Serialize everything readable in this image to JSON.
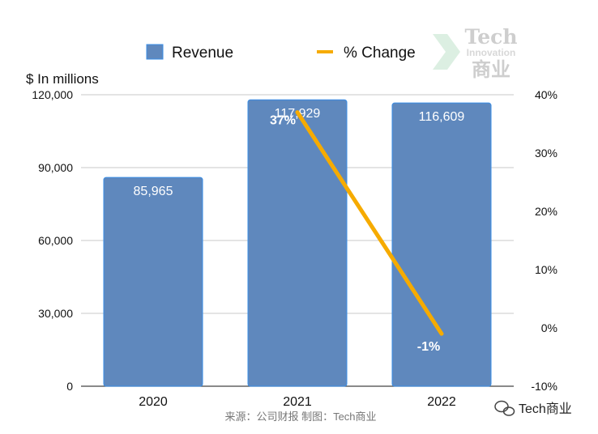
{
  "chart_data": {
    "type": "bar+line",
    "categories": [
      "2020",
      "2021",
      "2022"
    ],
    "series": [
      {
        "name": "Revenue",
        "type": "bar",
        "axis": "left",
        "values": [
          85965,
          117929,
          116609
        ],
        "labels": [
          "85,965",
          "117,929",
          "116,609"
        ]
      },
      {
        "name": "% Change",
        "type": "line",
        "axis": "right",
        "points": [
          {
            "x": "2021",
            "y": 37
          },
          {
            "x": "2022",
            "y": -1
          }
        ],
        "labels": [
          "37%",
          "-1%"
        ]
      }
    ],
    "left_axis": {
      "label": "$ In millions",
      "ylim": [
        0,
        120000
      ],
      "ticks": [
        "0",
        "30,000",
        "60,000",
        "90,000",
        "120,000"
      ]
    },
    "right_axis": {
      "ylim": [
        -10,
        40
      ],
      "ticks": [
        "-10%",
        "0%",
        "10%",
        "20%",
        "30%",
        "40%"
      ]
    },
    "grid": true,
    "legend_position": "top"
  },
  "colors": {
    "bar": "#5f88bd",
    "bar_edge": "#3a8ee6",
    "line": "#f6ab00",
    "grid": "#c8c8c8"
  },
  "footer": {
    "source": "来源：公司财报 制图：Tech商业",
    "brand": "Tech商业"
  },
  "watermark": {
    "title": "Tech",
    "subtitle": "Innovation",
    "cn": "商业"
  }
}
